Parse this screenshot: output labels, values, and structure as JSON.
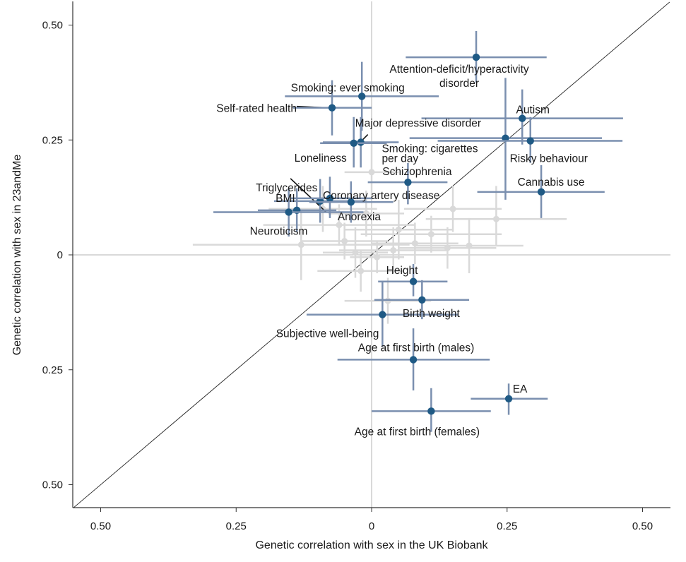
{
  "chart_data": {
    "type": "scatter",
    "xlabel": "Genetic correlation with sex in the UK Biobank",
    "ylabel": "Genetic correlation with sex in 23andMe",
    "xlim": [
      -0.55,
      0.55
    ],
    "ylim": [
      -0.55,
      0.55
    ],
    "x_ticks": [
      -0.5,
      -0.25,
      0,
      0.25,
      0.5
    ],
    "x_tick_labels": [
      "0.50",
      "0.25",
      "0",
      "0.25",
      "0.50"
    ],
    "y_ticks": [
      0.5,
      0.25,
      0,
      -0.25,
      -0.5
    ],
    "y_tick_labels": [
      "0.50",
      "0.25",
      "0",
      "0.25",
      "0.50"
    ],
    "reference_lines": [
      "x = 0",
      "y = 0",
      "identity line y = x"
    ],
    "grid": false,
    "colors": {
      "highlight_point": "#1f5a85",
      "highlight_error": "#7a8faf",
      "background_point": "#d9d9d9",
      "background_error": "#d9d9d9",
      "axis": "#333333",
      "zero_line": "#b3b3b3"
    },
    "labeled_series": [
      {
        "label": "Attention-deficit/hyperactivity disorder",
        "label_lines": [
          "Attention-deficit/hyperactivity",
          "disorder"
        ],
        "x": 0.193,
        "y": 0.43,
        "x_ci": [
          0.063,
          0.323
        ],
        "y_ci": [
          0.375,
          0.487
        ]
      },
      {
        "label": "Smoking: ever smoking",
        "label_lines": [
          "Smoking: ever smoking"
        ],
        "x": -0.018,
        "y": 0.345,
        "x_ci": [
          -0.16,
          0.124
        ],
        "y_ci": [
          0.27,
          0.42
        ]
      },
      {
        "label": "Self-rated health",
        "label_lines": [
          "Self-rated health"
        ],
        "x": -0.073,
        "y": 0.32,
        "x_ci": [
          -0.145,
          0.0
        ],
        "y_ci": [
          0.26,
          0.38
        ]
      },
      {
        "label": "Major depressive disorder",
        "label_lines": [
          "Major depressive disorder"
        ],
        "x": -0.02,
        "y": 0.245,
        "x_ci": [
          -0.09,
          0.05
        ],
        "y_ci": [
          0.19,
          0.3
        ]
      },
      {
        "label": "Loneliness",
        "label_lines": [
          "Loneliness"
        ],
        "x": -0.033,
        "y": 0.243,
        "x_ci": [
          -0.095,
          0.028
        ],
        "y_ci": [
          0.19,
          0.3
        ]
      },
      {
        "label": "Autism",
        "label_lines": [
          "Autism"
        ],
        "x": 0.278,
        "y": 0.297,
        "x_ci": [
          0.092,
          0.464
        ],
        "y_ci": [
          0.24,
          0.36
        ]
      },
      {
        "label": "Smoking: cigarettes per day",
        "label_lines": [
          "Smoking: cigarettes",
          "per day"
        ],
        "x": 0.247,
        "y": 0.254,
        "x_ci": [
          0.07,
          0.425
        ],
        "y_ci": [
          0.12,
          0.385
        ]
      },
      {
        "label": "Risky behaviour",
        "label_lines": [
          "Risky behaviour"
        ],
        "x": 0.293,
        "y": 0.248,
        "x_ci": [
          0.122,
          0.463
        ],
        "y_ci": [
          0.2,
          0.3
        ]
      },
      {
        "label": "Schizophrenia",
        "label_lines": [
          "Schizophrenia"
        ],
        "x": 0.067,
        "y": 0.158,
        "x_ci": [
          -0.007,
          0.14
        ],
        "y_ci": [
          0.11,
          0.2
        ]
      },
      {
        "label": "Cannabis use",
        "label_lines": [
          "Cannabis use"
        ],
        "x": 0.313,
        "y": 0.137,
        "x_ci": [
          0.195,
          0.43
        ],
        "y_ci": [
          0.08,
          0.195
        ]
      },
      {
        "label": "Triglycerides",
        "label_lines": [
          "Triglycerides"
        ],
        "x": -0.095,
        "y": 0.117,
        "x_ci": [
          -0.18,
          -0.01
        ],
        "y_ci": [
          0.07,
          0.165
        ]
      },
      {
        "label": "Coronary artery disease",
        "label_lines": [
          "Coronary artery disease"
        ],
        "x": -0.077,
        "y": 0.123,
        "x_ci": [
          -0.15,
          0.0
        ],
        "y_ci": [
          0.08,
          0.17
        ]
      },
      {
        "label": "Anorexia",
        "label_lines": [
          "Anorexia"
        ],
        "x": -0.038,
        "y": 0.115,
        "x_ci": [
          -0.115,
          0.04
        ],
        "y_ci": [
          0.07,
          0.16
        ]
      },
      {
        "label": "BMI",
        "label_lines": [
          "BMI"
        ],
        "x": -0.138,
        "y": 0.097,
        "x_ci": [
          -0.21,
          -0.065
        ],
        "y_ci": [
          0.05,
          0.145
        ]
      },
      {
        "label": "Neuroticism",
        "label_lines": [
          "Neuroticism"
        ],
        "x": -0.153,
        "y": 0.093,
        "x_ci": [
          -0.292,
          -0.015
        ],
        "y_ci": [
          0.04,
          0.145
        ]
      },
      {
        "label": "Height",
        "label_lines": [
          "Height"
        ],
        "x": 0.077,
        "y": -0.058,
        "x_ci": [
          0.012,
          0.14
        ],
        "y_ci": [
          -0.09,
          -0.02
        ]
      },
      {
        "label": "Birth weight",
        "label_lines": [
          "Birth weight"
        ],
        "x": 0.093,
        "y": -0.098,
        "x_ci": [
          0.005,
          0.18
        ],
        "y_ci": [
          -0.14,
          -0.055
        ]
      },
      {
        "label": "Subjective well-being",
        "label_lines": [
          "Subjective well-being"
        ],
        "x": 0.02,
        "y": -0.13,
        "x_ci": [
          -0.12,
          0.16
        ],
        "y_ci": [
          -0.2,
          -0.06
        ]
      },
      {
        "label": "Age at first birth (males)",
        "label_lines": [
          "Age at first birth (males)"
        ],
        "x": 0.077,
        "y": -0.228,
        "x_ci": [
          -0.063,
          0.218
        ],
        "y_ci": [
          -0.295,
          -0.16
        ]
      },
      {
        "label": "EA",
        "label_lines": [
          "EA"
        ],
        "x": 0.253,
        "y": -0.313,
        "x_ci": [
          0.183,
          0.325
        ],
        "y_ci": [
          -0.348,
          -0.28
        ]
      },
      {
        "label": "Age at first birth (females)",
        "label_lines": [
          "Age at first birth (females)"
        ],
        "x": 0.11,
        "y": -0.34,
        "x_ci": [
          0.0,
          0.22
        ],
        "y_ci": [
          -0.385,
          -0.29
        ]
      }
    ],
    "unlabeled_series": [
      {
        "x": 0.23,
        "y": 0.078,
        "x_ci": [
          0.1,
          0.36
        ],
        "y_ci": [
          0.02,
          0.15
        ]
      },
      {
        "x": 0.11,
        "y": 0.045,
        "x_ci": [
          -0.02,
          0.24
        ],
        "y_ci": [
          0.005,
          0.085
        ]
      },
      {
        "x": -0.13,
        "y": 0.022,
        "x_ci": [
          -0.33,
          0.07
        ],
        "y_ci": [
          -0.055,
          0.1
        ]
      },
      {
        "x": 0.14,
        "y": 0.015,
        "x_ci": [
          0.05,
          0.23
        ],
        "y_ci": [
          -0.03,
          0.06
        ]
      },
      {
        "x": -0.06,
        "y": 0.065,
        "x_ci": [
          -0.2,
          0.08
        ],
        "y_ci": [
          0.02,
          0.11
        ]
      },
      {
        "x": 0.04,
        "y": 0.01,
        "x_ci": [
          -0.06,
          0.14
        ],
        "y_ci": [
          -0.04,
          0.06
        ]
      },
      {
        "x": -0.03,
        "y": 0.005,
        "x_ci": [
          -0.09,
          0.03
        ],
        "y_ci": [
          -0.05,
          0.06
        ]
      },
      {
        "x": 0.08,
        "y": 0.025,
        "x_ci": [
          0.0,
          0.16
        ],
        "y_ci": [
          -0.02,
          0.07
        ]
      },
      {
        "x": -0.02,
        "y": -0.035,
        "x_ci": [
          -0.1,
          0.06
        ],
        "y_ci": [
          -0.08,
          0.01
        ]
      },
      {
        "x": 0.0,
        "y": 0.18,
        "x_ci": [
          -0.05,
          0.05
        ],
        "y_ci": [
          0.12,
          0.24
        ]
      },
      {
        "x": -0.01,
        "y": 0.09,
        "x_ci": [
          -0.08,
          0.06
        ],
        "y_ci": [
          0.04,
          0.14
        ]
      },
      {
        "x": 0.05,
        "y": 0.055,
        "x_ci": [
          -0.05,
          0.15
        ],
        "y_ci": [
          -0.01,
          0.12
        ]
      },
      {
        "x": 0.15,
        "y": 0.1,
        "x_ci": [
          0.06,
          0.24
        ],
        "y_ci": [
          0.05,
          0.15
        ]
      },
      {
        "x": 0.01,
        "y": -0.005,
        "x_ci": [
          -0.04,
          0.06
        ],
        "y_ci": [
          -0.04,
          0.03
        ]
      },
      {
        "x": 0.03,
        "y": -0.1,
        "x_ci": [
          -0.05,
          0.11
        ],
        "y_ci": [
          -0.15,
          -0.05
        ]
      },
      {
        "x": -0.05,
        "y": 0.03,
        "x_ci": [
          -0.13,
          0.03
        ],
        "y_ci": [
          -0.01,
          0.07
        ]
      },
      {
        "x": 0.18,
        "y": 0.02,
        "x_ci": [
          0.08,
          0.28
        ],
        "y_ci": [
          -0.04,
          0.08
        ]
      },
      {
        "x": -0.09,
        "y": 0.1,
        "x_ci": [
          -0.19,
          0.01
        ],
        "y_ci": [
          0.05,
          0.15
        ]
      }
    ],
    "leader_lines": [
      "Self-rated health",
      "Major depressive disorder",
      "Triglycerides"
    ]
  }
}
